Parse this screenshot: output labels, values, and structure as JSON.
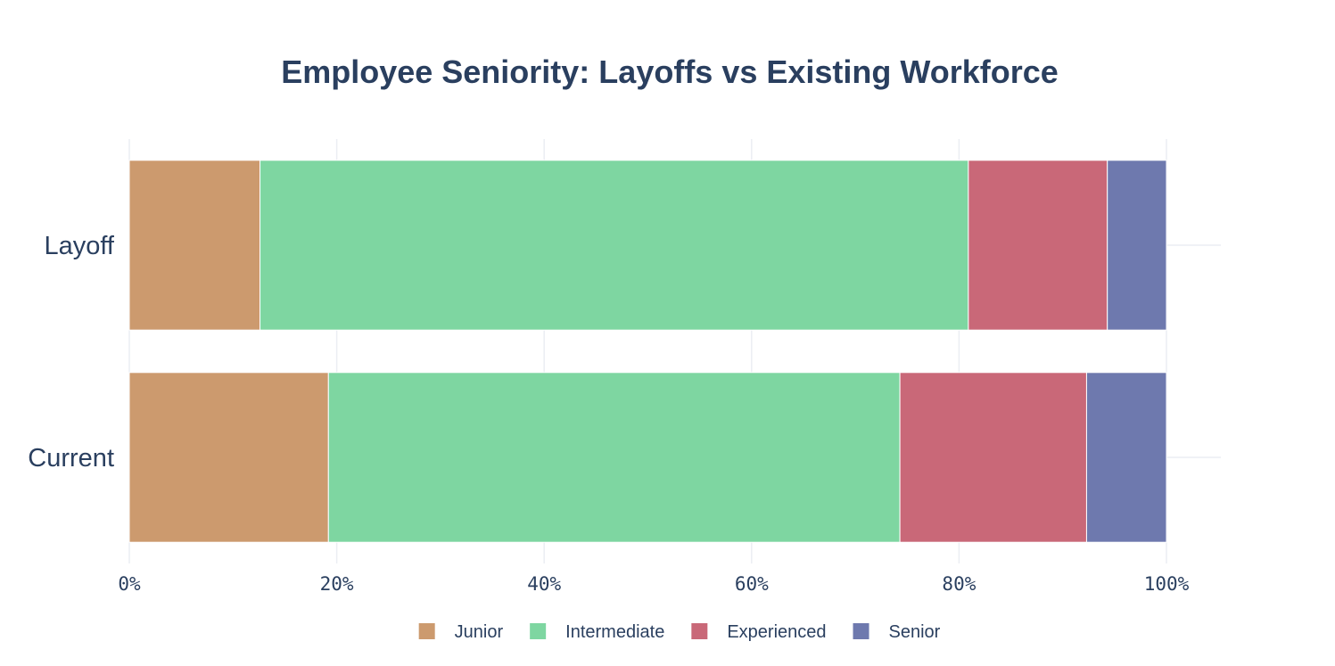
{
  "chart_data": {
    "type": "bar",
    "orientation": "horizontal",
    "stacked": true,
    "normalized": true,
    "title": "Employee Seniority: Layoffs vs Existing Workforce",
    "xlabel": "",
    "ylabel": "",
    "xlim": [
      0,
      100
    ],
    "grid": true,
    "legend_position": "bottom-center",
    "categories": [
      "Layoff",
      "Current"
    ],
    "x_ticks": [
      "0%",
      "20%",
      "40%",
      "60%",
      "80%",
      "100%"
    ],
    "x_tick_values": [
      0,
      20,
      40,
      60,
      80,
      100
    ],
    "series": [
      {
        "name": "Junior",
        "color": "#cc9a6e",
        "values": [
          12.6,
          19.2
        ]
      },
      {
        "name": "Intermediate",
        "color": "#7ed6a1",
        "values": [
          68.3,
          55.1
        ]
      },
      {
        "name": "Experienced",
        "color": "#c96878",
        "values": [
          13.4,
          18.0
        ]
      },
      {
        "name": "Senior",
        "color": "#6e79ae",
        "values": [
          5.7,
          7.7
        ]
      }
    ]
  }
}
